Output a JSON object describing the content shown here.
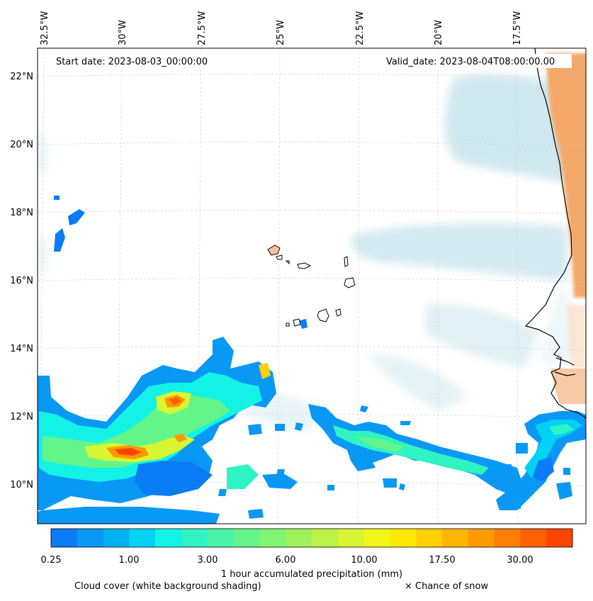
{
  "header": {
    "start_date": "Start date: 2023-08-03_00:00:00",
    "valid_date": "Valid_date: 2023-08-04T08:00:00.00"
  },
  "axes": {
    "lon_ticks": [
      "32.5°W",
      "30°W",
      "27.5°W",
      "25°W",
      "22.5°W",
      "20°W",
      "17.5°W"
    ],
    "lat_ticks": [
      "22°N",
      "20°N",
      "18°N",
      "16°N",
      "14°N",
      "12°N",
      "10°N"
    ]
  },
  "colorbar": {
    "label": "1 hour accumulated precipitation (mm)",
    "ticks": [
      "0.25",
      "1.00",
      "3.00",
      "6.00",
      "10.00",
      "17.50",
      "30.00"
    ],
    "colors": [
      "#0a7cf5",
      "#0a98f5",
      "#00b2f0",
      "#00d2f4",
      "#14f2e6",
      "#2ef3c3",
      "#49f3a8",
      "#63f58a",
      "#80f572",
      "#9df25c",
      "#baf247",
      "#d7f532",
      "#f0f51a",
      "#fee800",
      "#ffd000",
      "#ffb600",
      "#ff9a00",
      "#ff7d00",
      "#ff6000",
      "#ff4400"
    ]
  },
  "legend": {
    "cloud_cover": "Cloud cover (white background shading)",
    "snow": "× Chance of snow"
  },
  "colors": {
    "cloud": "#a8d5e2",
    "land_heat": "#f4a96a",
    "coast": "#000000"
  }
}
